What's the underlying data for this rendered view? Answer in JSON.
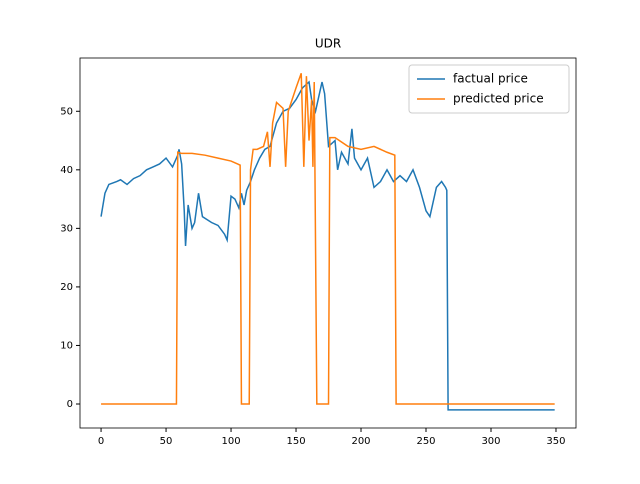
{
  "chart_data": {
    "type": "line",
    "title": "UDR",
    "xlim": [
      -16.2,
      365.4
    ],
    "xticks": [
      0,
      50,
      100,
      150,
      200,
      250,
      300,
      350
    ],
    "ylim": [
      -4.1,
      59.1
    ],
    "yticks": [
      0,
      10,
      20,
      30,
      40,
      50
    ],
    "legend": "upper right",
    "series": [
      {
        "name": "factual price",
        "color": "#1f77b4",
        "x": [
          0,
          3,
          6,
          12,
          15,
          20,
          25,
          30,
          35,
          40,
          45,
          50,
          55,
          59,
          60,
          62,
          64,
          65,
          67,
          70,
          72,
          75,
          78,
          85,
          90,
          95,
          97,
          100,
          103,
          106,
          108,
          110,
          112,
          115,
          118,
          122,
          126,
          130,
          135,
          140,
          145,
          150,
          155,
          160,
          162,
          165,
          168,
          170,
          172,
          175,
          180,
          182,
          185,
          190,
          193,
          195,
          200,
          205,
          210,
          215,
          220,
          225,
          230,
          235,
          240,
          245,
          250,
          253,
          258,
          262,
          265,
          266,
          267,
          349
        ],
        "values": [
          32,
          36,
          37.5,
          38,
          38.3,
          37.5,
          38.5,
          39,
          40,
          40.5,
          41,
          42,
          40.5,
          42.5,
          43.5,
          41,
          33,
          27,
          34,
          30,
          31,
          36,
          32,
          31,
          30.5,
          29,
          28,
          35.5,
          35,
          33.5,
          36,
          34,
          36.5,
          38,
          40,
          42,
          43.5,
          44,
          48,
          50,
          50.5,
          52,
          54,
          55,
          52,
          50,
          53,
          55,
          53,
          44,
          45,
          40,
          43,
          41,
          47,
          42,
          40,
          42,
          37,
          38,
          40,
          38,
          39,
          38,
          40,
          37,
          33,
          32,
          37,
          38,
          37,
          36.5,
          -1,
          -1
        ]
      },
      {
        "name": "predicted price",
        "color": "#ff7f0e",
        "x": [
          0,
          58,
          59,
          62,
          70,
          80,
          90,
          100,
          105,
          107,
          108,
          114,
          115,
          117,
          120,
          125,
          128,
          130,
          132,
          135,
          140,
          142,
          144,
          150,
          154,
          156,
          158,
          160,
          162,
          163,
          164,
          166,
          175,
          176,
          180,
          190,
          200,
          210,
          220,
          226,
          227,
          349
        ],
        "values": [
          0,
          0,
          43,
          42.8,
          42.8,
          42.5,
          42,
          41.5,
          41,
          40.8,
          0,
          0,
          40,
          43.5,
          43.5,
          44,
          46.5,
          40.5,
          48,
          51.5,
          50.5,
          40.5,
          50,
          54,
          56.5,
          40.5,
          56,
          45,
          52,
          40.5,
          55,
          0,
          0,
          45.5,
          45.5,
          44,
          43.5,
          44,
          43,
          42.5,
          0,
          0
        ]
      }
    ]
  }
}
